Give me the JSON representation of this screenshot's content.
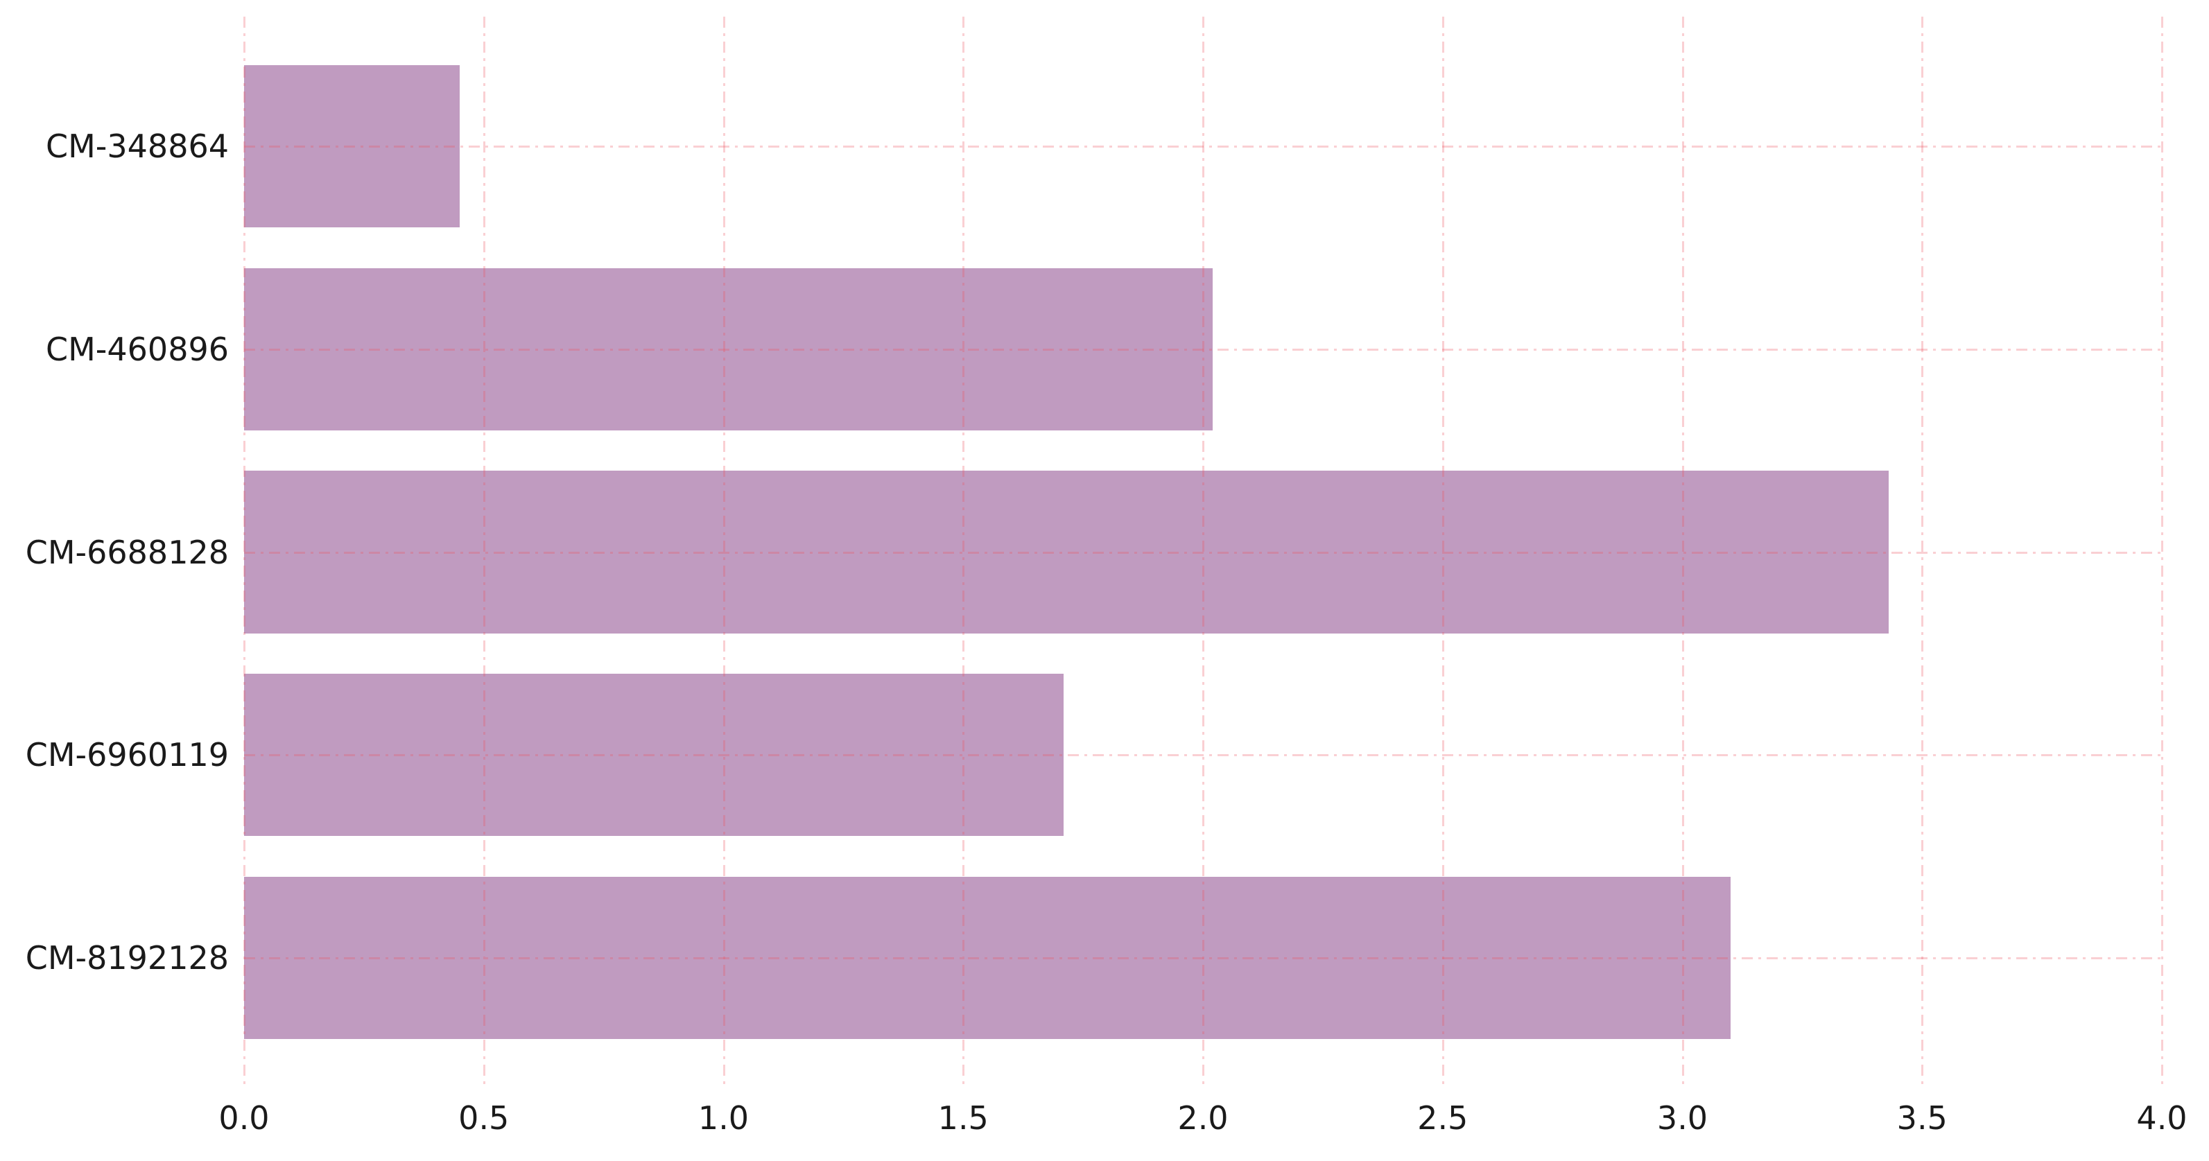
{
  "figure": {
    "background": "#ffffff"
  },
  "chart_data": {
    "type": "bar",
    "orientation": "horizontal",
    "title": "",
    "xlabel": "",
    "ylabel": "",
    "categories": [
      "CM-348864",
      "CM-460896",
      "CM-6688128",
      "CM-6960119",
      "CM-8192128"
    ],
    "values": [
      0.45,
      2.02,
      3.43,
      1.71,
      3.1
    ],
    "xlim": [
      0,
      4
    ],
    "xtick_labels": [
      "0.0",
      "0.5",
      "1.0",
      "1.5",
      "2.0",
      "2.5",
      "3.0",
      "3.5",
      "4.0"
    ],
    "xtick_values": [
      0,
      0.5,
      1,
      1.5,
      2,
      2.5,
      3,
      3.5,
      4
    ],
    "grid": {
      "visible": true,
      "style": "dash-dot",
      "color": "#eb5460",
      "alpha": 0.28,
      "vertical_at_ticks": true,
      "horizontal_at_categories": true
    },
    "legend": null,
    "colors": {
      "bar": "#c09bc0",
      "tick_text": "#1a1a1a"
    },
    "bar_fraction_of_slot": 0.8,
    "axis_padding_units": 0.64
  }
}
